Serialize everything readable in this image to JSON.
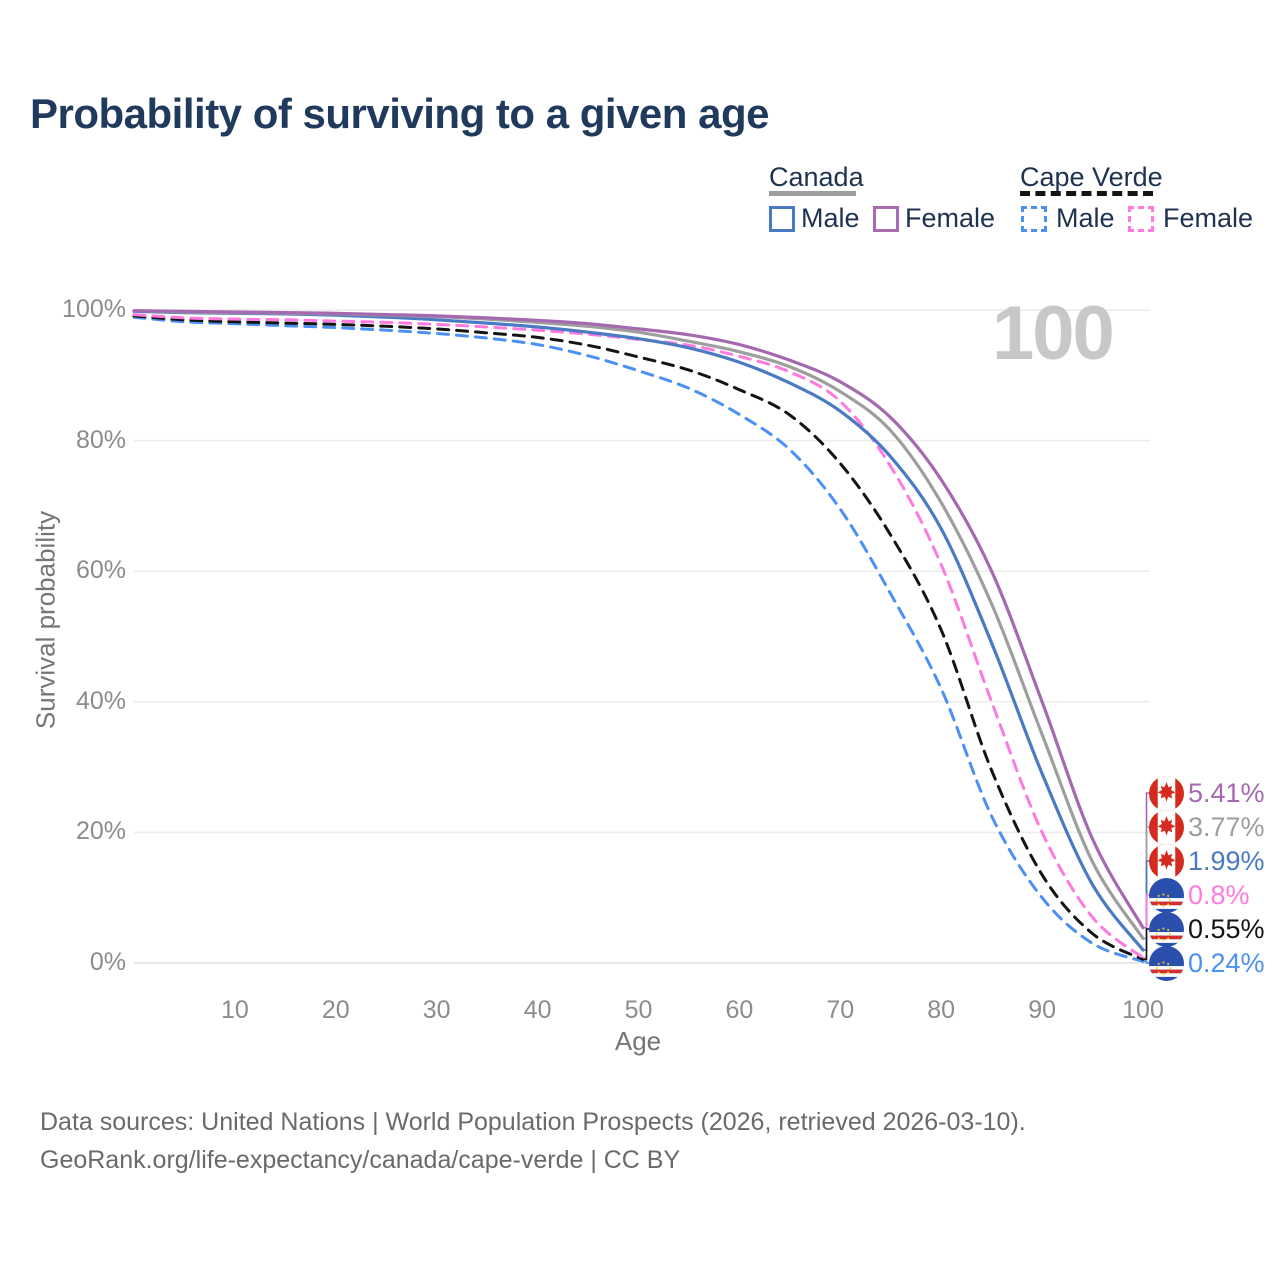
{
  "title": "Probability of surviving to a given age",
  "watermark": "100",
  "legend": {
    "groups": [
      {
        "label": "Canada",
        "line_style": "solid",
        "underline_color": "#9e9e9e",
        "items": [
          {
            "label": "Male",
            "color": "#4a7ac2"
          },
          {
            "label": "Female",
            "color": "#a96cb0"
          }
        ]
      },
      {
        "label": "Cape Verde",
        "line_style": "dashed",
        "underline_color": "#141414",
        "items": [
          {
            "label": "Male",
            "color": "#4a90f5"
          },
          {
            "label": "Female",
            "color": "#ff7ade"
          }
        ]
      }
    ]
  },
  "axes": {
    "x_label": "Age",
    "y_label": "Survival probability",
    "x_ticks": [
      "10",
      "20",
      "30",
      "40",
      "50",
      "60",
      "70",
      "80",
      "90",
      "100"
    ],
    "x_tick_values": [
      10,
      20,
      30,
      40,
      50,
      60,
      70,
      80,
      90,
      100
    ],
    "y_ticks": [
      "100%",
      "80%",
      "60%",
      "40%",
      "20%",
      "0%"
    ],
    "y_tick_values": [
      100,
      80,
      60,
      40,
      20,
      0
    ]
  },
  "chart_data": {
    "type": "line",
    "title": "Probability of surviving to a given age",
    "xlabel": "Age",
    "ylabel": "Survival probability",
    "xlim": [
      0,
      100
    ],
    "ylim": [
      0,
      100
    ],
    "grid": "horizontal",
    "legend_position": "top-right",
    "x": [
      0,
      5,
      10,
      15,
      20,
      25,
      30,
      35,
      40,
      45,
      50,
      55,
      60,
      65,
      70,
      75,
      80,
      85,
      90,
      95,
      100
    ],
    "series": [
      {
        "name": "Canada — Female",
        "country": "Canada",
        "sex": "Female",
        "color": "#a569b0",
        "dashed": false,
        "flag": "canada",
        "end_label": "5.41%",
        "end_value": 5.41,
        "values": [
          99.9,
          99.8,
          99.7,
          99.6,
          99.5,
          99.3,
          99.1,
          98.8,
          98.4,
          97.9,
          97.1,
          96.2,
          94.7,
          92.3,
          89.0,
          83.5,
          74.0,
          60.0,
          40.0,
          19.0,
          5.41
        ]
      },
      {
        "name": "Canada — Both sexes",
        "country": "Canada",
        "sex": "Both",
        "color": "#9e9e9e",
        "dashed": false,
        "flag": "canada",
        "end_label": "3.77%",
        "end_value": 3.77,
        "values": [
          99.9,
          99.7,
          99.6,
          99.5,
          99.4,
          99.2,
          99.0,
          98.6,
          98.1,
          97.5,
          96.6,
          95.2,
          93.6,
          91.3,
          87.5,
          81.5,
          70.5,
          55.0,
          35.0,
          15.5,
          3.77
        ]
      },
      {
        "name": "Canada — Male",
        "country": "Canada",
        "sex": "Male",
        "color": "#4a7ac2",
        "dashed": false,
        "flag": "canada",
        "end_label": "1.99%",
        "end_value": 1.99,
        "values": [
          99.8,
          99.6,
          99.5,
          99.4,
          99.2,
          98.9,
          98.5,
          98.0,
          97.4,
          96.6,
          95.6,
          94.2,
          92.0,
          88.8,
          84.5,
          77.5,
          66.5,
          49.0,
          29.0,
          12.0,
          1.99
        ]
      },
      {
        "name": "Cape Verde — Female",
        "country": "Cape Verde",
        "sex": "Female",
        "color": "#ff7ade",
        "dashed": true,
        "flag": "capeverde",
        "end_label": "0.8%",
        "end_value": 0.8,
        "values": [
          99.3,
          98.8,
          98.6,
          98.5,
          98.3,
          98.1,
          97.8,
          97.4,
          96.9,
          96.3,
          95.5,
          94.6,
          92.9,
          90.5,
          86.0,
          76.0,
          61.0,
          40.0,
          20.0,
          7.0,
          0.8
        ]
      },
      {
        "name": "Cape Verde — Both sexes",
        "country": "Cape Verde",
        "sex": "Both",
        "color": "#141414",
        "dashed": true,
        "flag": "capeverde",
        "end_label": "0.55%",
        "end_value": 0.55,
        "values": [
          99.1,
          98.5,
          98.2,
          98.0,
          97.8,
          97.5,
          97.1,
          96.5,
          95.8,
          94.6,
          92.8,
          90.8,
          87.8,
          83.9,
          76.5,
          65.5,
          51.0,
          29.5,
          13.5,
          4.5,
          0.55
        ]
      },
      {
        "name": "Cape Verde — Male",
        "country": "Cape Verde",
        "sex": "Male",
        "color": "#4a90f5",
        "dashed": true,
        "flag": "capeverde",
        "end_label": "0.24%",
        "end_value": 0.24,
        "values": [
          98.9,
          98.2,
          97.9,
          97.6,
          97.3,
          96.9,
          96.4,
          95.7,
          94.7,
          93.0,
          90.7,
          88.0,
          84.0,
          78.6,
          69.5,
          56.5,
          42.0,
          22.5,
          10.0,
          3.0,
          0.24
        ]
      }
    ]
  },
  "footer": {
    "line1": "Data sources: United Nations | World Population Prospects (2026, retrieved 2026-03-10).",
    "line2": "GeoRank.org/life-expectancy/canada/cape-verde | CC BY"
  }
}
